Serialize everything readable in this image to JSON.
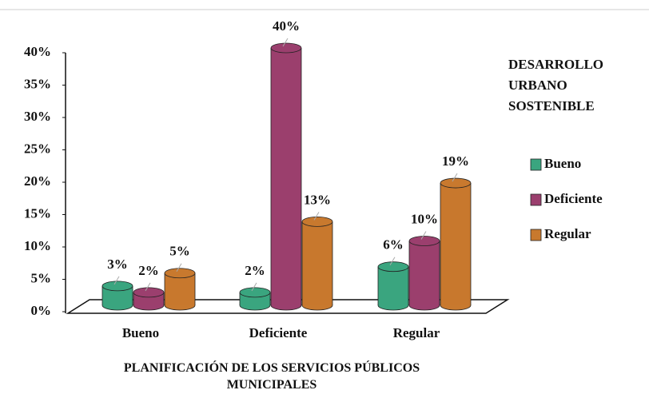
{
  "chart_data": {
    "type": "bar3d",
    "x_label": "PLANIFICACIÓN DE LOS SERVICIOS PÚBLICOS MUNICIPALES",
    "legend_title": "DESARROLLO URBANO SOSTENIBLE",
    "categories": [
      "Bueno",
      "Deficiente",
      "Regular"
    ],
    "series": [
      {
        "name": "Bueno",
        "color": "#3aa57f",
        "values": [
          3,
          2,
          6
        ],
        "value_labels": [
          "3%",
          "2%",
          "6%"
        ]
      },
      {
        "name": "Deficiente",
        "color": "#9b3f6e",
        "values": [
          2,
          40,
          10
        ],
        "value_labels": [
          "2%",
          "40%",
          "10%"
        ]
      },
      {
        "name": "Regular",
        "color": "#c8792e",
        "values": [
          5,
          13,
          19
        ],
        "value_labels": [
          "5%",
          "13%",
          "19%"
        ]
      }
    ],
    "ylim": [
      0,
      40
    ],
    "yticks": [
      {
        "value": 0,
        "label": "0%"
      },
      {
        "value": 5,
        "label": "5%"
      },
      {
        "value": 10,
        "label": "10%"
      },
      {
        "value": 15,
        "label": "15%"
      },
      {
        "value": 20,
        "label": "20%"
      },
      {
        "value": 25,
        "label": "25%"
      },
      {
        "value": 30,
        "label": "30%"
      },
      {
        "value": 35,
        "label": "35%"
      },
      {
        "value": 40,
        "label": "40%"
      }
    ],
    "legend": "right"
  }
}
